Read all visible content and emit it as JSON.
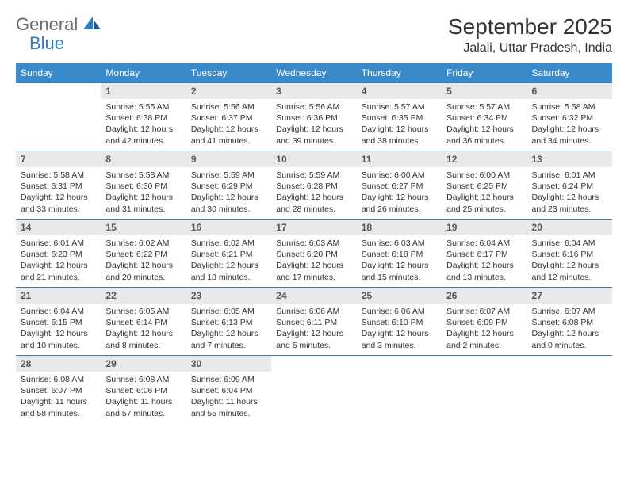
{
  "logo": {
    "general": "General",
    "blue": "Blue"
  },
  "title": "September 2025",
  "location": "Jalali, Uttar Pradesh, India",
  "colors": {
    "header_bg": "#3a89c9",
    "header_text": "#ffffff",
    "daynum_bg": "#e9e9e9",
    "border": "#3a79a8",
    "logo_gray": "#6a6a6a",
    "logo_blue": "#2f7bbf"
  },
  "weekdays": [
    "Sunday",
    "Monday",
    "Tuesday",
    "Wednesday",
    "Thursday",
    "Friday",
    "Saturday"
  ],
  "weeks": [
    [
      null,
      {
        "n": "1",
        "sr": "Sunrise: 5:55 AM",
        "ss": "Sunset: 6:38 PM",
        "d1": "Daylight: 12 hours",
        "d2": "and 42 minutes."
      },
      {
        "n": "2",
        "sr": "Sunrise: 5:56 AM",
        "ss": "Sunset: 6:37 PM",
        "d1": "Daylight: 12 hours",
        "d2": "and 41 minutes."
      },
      {
        "n": "3",
        "sr": "Sunrise: 5:56 AM",
        "ss": "Sunset: 6:36 PM",
        "d1": "Daylight: 12 hours",
        "d2": "and 39 minutes."
      },
      {
        "n": "4",
        "sr": "Sunrise: 5:57 AM",
        "ss": "Sunset: 6:35 PM",
        "d1": "Daylight: 12 hours",
        "d2": "and 38 minutes."
      },
      {
        "n": "5",
        "sr": "Sunrise: 5:57 AM",
        "ss": "Sunset: 6:34 PM",
        "d1": "Daylight: 12 hours",
        "d2": "and 36 minutes."
      },
      {
        "n": "6",
        "sr": "Sunrise: 5:58 AM",
        "ss": "Sunset: 6:32 PM",
        "d1": "Daylight: 12 hours",
        "d2": "and 34 minutes."
      }
    ],
    [
      {
        "n": "7",
        "sr": "Sunrise: 5:58 AM",
        "ss": "Sunset: 6:31 PM",
        "d1": "Daylight: 12 hours",
        "d2": "and 33 minutes."
      },
      {
        "n": "8",
        "sr": "Sunrise: 5:58 AM",
        "ss": "Sunset: 6:30 PM",
        "d1": "Daylight: 12 hours",
        "d2": "and 31 minutes."
      },
      {
        "n": "9",
        "sr": "Sunrise: 5:59 AM",
        "ss": "Sunset: 6:29 PM",
        "d1": "Daylight: 12 hours",
        "d2": "and 30 minutes."
      },
      {
        "n": "10",
        "sr": "Sunrise: 5:59 AM",
        "ss": "Sunset: 6:28 PM",
        "d1": "Daylight: 12 hours",
        "d2": "and 28 minutes."
      },
      {
        "n": "11",
        "sr": "Sunrise: 6:00 AM",
        "ss": "Sunset: 6:27 PM",
        "d1": "Daylight: 12 hours",
        "d2": "and 26 minutes."
      },
      {
        "n": "12",
        "sr": "Sunrise: 6:00 AM",
        "ss": "Sunset: 6:25 PM",
        "d1": "Daylight: 12 hours",
        "d2": "and 25 minutes."
      },
      {
        "n": "13",
        "sr": "Sunrise: 6:01 AM",
        "ss": "Sunset: 6:24 PM",
        "d1": "Daylight: 12 hours",
        "d2": "and 23 minutes."
      }
    ],
    [
      {
        "n": "14",
        "sr": "Sunrise: 6:01 AM",
        "ss": "Sunset: 6:23 PM",
        "d1": "Daylight: 12 hours",
        "d2": "and 21 minutes."
      },
      {
        "n": "15",
        "sr": "Sunrise: 6:02 AM",
        "ss": "Sunset: 6:22 PM",
        "d1": "Daylight: 12 hours",
        "d2": "and 20 minutes."
      },
      {
        "n": "16",
        "sr": "Sunrise: 6:02 AM",
        "ss": "Sunset: 6:21 PM",
        "d1": "Daylight: 12 hours",
        "d2": "and 18 minutes."
      },
      {
        "n": "17",
        "sr": "Sunrise: 6:03 AM",
        "ss": "Sunset: 6:20 PM",
        "d1": "Daylight: 12 hours",
        "d2": "and 17 minutes."
      },
      {
        "n": "18",
        "sr": "Sunrise: 6:03 AM",
        "ss": "Sunset: 6:18 PM",
        "d1": "Daylight: 12 hours",
        "d2": "and 15 minutes."
      },
      {
        "n": "19",
        "sr": "Sunrise: 6:04 AM",
        "ss": "Sunset: 6:17 PM",
        "d1": "Daylight: 12 hours",
        "d2": "and 13 minutes."
      },
      {
        "n": "20",
        "sr": "Sunrise: 6:04 AM",
        "ss": "Sunset: 6:16 PM",
        "d1": "Daylight: 12 hours",
        "d2": "and 12 minutes."
      }
    ],
    [
      {
        "n": "21",
        "sr": "Sunrise: 6:04 AM",
        "ss": "Sunset: 6:15 PM",
        "d1": "Daylight: 12 hours",
        "d2": "and 10 minutes."
      },
      {
        "n": "22",
        "sr": "Sunrise: 6:05 AM",
        "ss": "Sunset: 6:14 PM",
        "d1": "Daylight: 12 hours",
        "d2": "and 8 minutes."
      },
      {
        "n": "23",
        "sr": "Sunrise: 6:05 AM",
        "ss": "Sunset: 6:13 PM",
        "d1": "Daylight: 12 hours",
        "d2": "and 7 minutes."
      },
      {
        "n": "24",
        "sr": "Sunrise: 6:06 AM",
        "ss": "Sunset: 6:11 PM",
        "d1": "Daylight: 12 hours",
        "d2": "and 5 minutes."
      },
      {
        "n": "25",
        "sr": "Sunrise: 6:06 AM",
        "ss": "Sunset: 6:10 PM",
        "d1": "Daylight: 12 hours",
        "d2": "and 3 minutes."
      },
      {
        "n": "26",
        "sr": "Sunrise: 6:07 AM",
        "ss": "Sunset: 6:09 PM",
        "d1": "Daylight: 12 hours",
        "d2": "and 2 minutes."
      },
      {
        "n": "27",
        "sr": "Sunrise: 6:07 AM",
        "ss": "Sunset: 6:08 PM",
        "d1": "Daylight: 12 hours",
        "d2": "and 0 minutes."
      }
    ],
    [
      {
        "n": "28",
        "sr": "Sunrise: 6:08 AM",
        "ss": "Sunset: 6:07 PM",
        "d1": "Daylight: 11 hours",
        "d2": "and 58 minutes."
      },
      {
        "n": "29",
        "sr": "Sunrise: 6:08 AM",
        "ss": "Sunset: 6:06 PM",
        "d1": "Daylight: 11 hours",
        "d2": "and 57 minutes."
      },
      {
        "n": "30",
        "sr": "Sunrise: 6:09 AM",
        "ss": "Sunset: 6:04 PM",
        "d1": "Daylight: 11 hours",
        "d2": "and 55 minutes."
      },
      null,
      null,
      null,
      null
    ]
  ]
}
